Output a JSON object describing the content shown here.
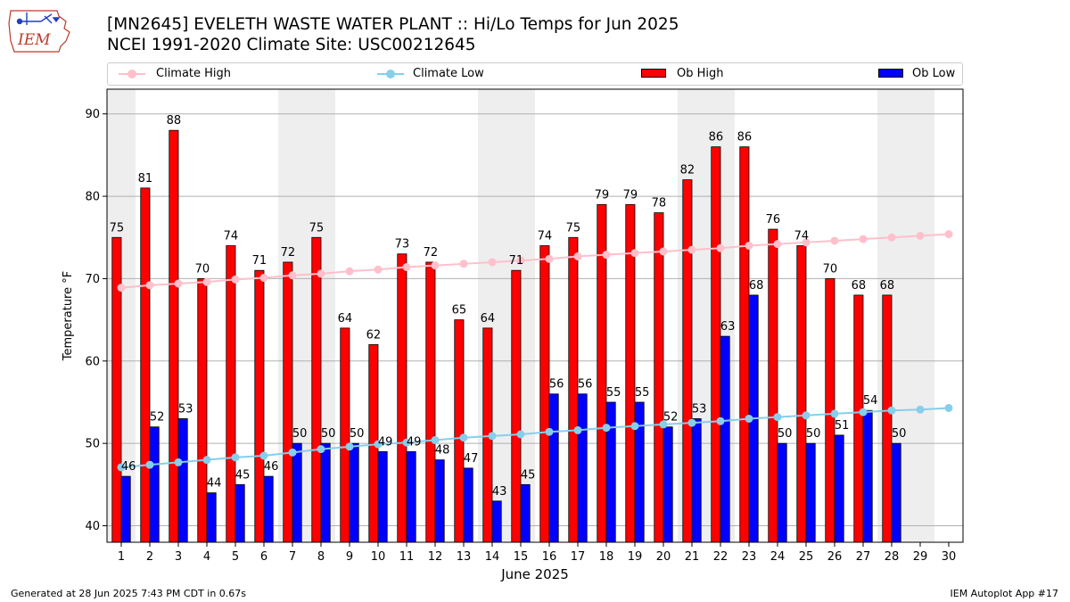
{
  "header": {
    "title_line1": "[MN2645] EVELETH WASTE WATER PLANT :: Hi/Lo Temps for Jun 2025",
    "title_line2": "NCEI 1991-2020 Climate Site: USC00212645",
    "logo_text": "IEM"
  },
  "legend": {
    "climate_high": "Climate High",
    "climate_low": "Climate Low",
    "ob_high": "Ob High",
    "ob_low": "Ob Low"
  },
  "colors": {
    "ob_high": "#ff0000",
    "ob_low": "#0000ff",
    "climate_high": "#ffc0cb",
    "climate_low": "#87ceeb",
    "weekend_band": "#eeeeee"
  },
  "footer": {
    "left": "Generated at 28 Jun 2025 7:43 PM CDT in 0.67s",
    "right": "IEM Autoplot App #17"
  },
  "chart_data": {
    "type": "bar",
    "title": "[MN2645] EVELETH WASTE WATER PLANT :: Hi/Lo Temps for Jun 2025",
    "subtitle": "NCEI 1991-2020 Climate Site: USC00212645",
    "xlabel": "June 2025",
    "ylabel": "Temperature °F",
    "ylim": [
      38,
      93
    ],
    "yticks": [
      40,
      50,
      60,
      70,
      80,
      90
    ],
    "grid": true,
    "legend_position": "top",
    "categories": [
      "1",
      "2",
      "3",
      "4",
      "5",
      "6",
      "7",
      "8",
      "9",
      "10",
      "11",
      "12",
      "13",
      "14",
      "15",
      "16",
      "17",
      "18",
      "19",
      "20",
      "21",
      "22",
      "23",
      "24",
      "25",
      "26",
      "27",
      "28",
      "29",
      "30"
    ],
    "weekend_days": [
      1,
      7,
      8,
      14,
      15,
      21,
      22,
      28,
      29
    ],
    "series": [
      {
        "name": "Ob High",
        "type": "bar",
        "values": [
          75,
          81,
          88,
          70,
          74,
          71,
          72,
          75,
          64,
          62,
          73,
          72,
          65,
          64,
          71,
          74,
          75,
          79,
          79,
          78,
          82,
          86,
          86,
          76,
          74,
          70,
          68,
          68,
          null,
          null
        ]
      },
      {
        "name": "Ob Low",
        "type": "bar",
        "values": [
          46,
          52,
          53,
          44,
          45,
          46,
          50,
          50,
          50,
          49,
          49,
          48,
          47,
          43,
          45,
          56,
          56,
          55,
          55,
          52,
          53,
          63,
          68,
          50,
          50,
          51,
          54,
          50,
          null,
          null
        ]
      },
      {
        "name": "Climate High",
        "type": "line",
        "values": [
          68.9,
          69.2,
          69.4,
          69.6,
          69.9,
          70.1,
          70.4,
          70.6,
          70.9,
          71.1,
          71.4,
          71.6,
          71.8,
          72.0,
          72.2,
          72.4,
          72.7,
          72.9,
          73.1,
          73.3,
          73.5,
          73.7,
          74.0,
          74.2,
          74.4,
          74.6,
          74.8,
          75.0,
          75.2,
          75.4
        ]
      },
      {
        "name": "Climate Low",
        "type": "line",
        "values": [
          47.1,
          47.4,
          47.7,
          48.0,
          48.3,
          48.5,
          48.9,
          49.3,
          49.6,
          49.9,
          50.1,
          50.4,
          50.7,
          50.9,
          51.1,
          51.4,
          51.6,
          51.9,
          52.1,
          52.3,
          52.5,
          52.7,
          53.0,
          53.2,
          53.4,
          53.6,
          53.8,
          54.0,
          54.1,
          54.3
        ]
      }
    ]
  }
}
